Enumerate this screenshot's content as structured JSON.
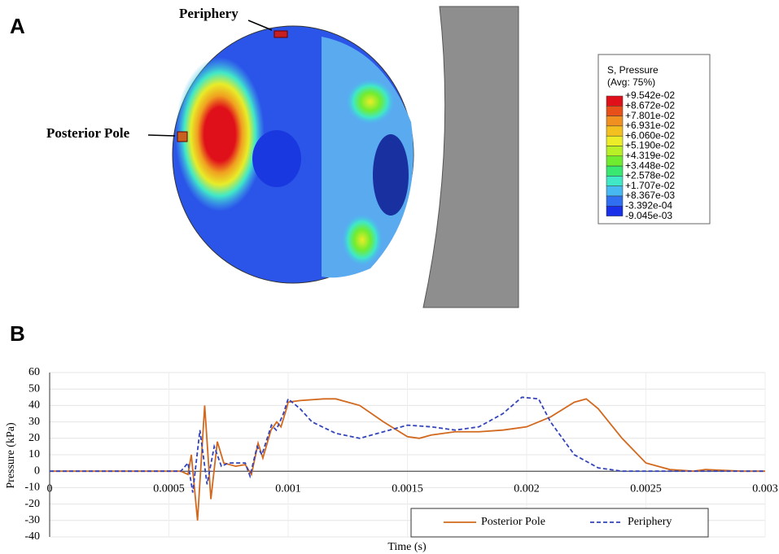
{
  "panel_a": {
    "label": "A",
    "annotations": [
      "Periphery",
      "Posterior Pole"
    ],
    "legend": {
      "title": "S, Pressure",
      "subtitle": "(Avg: 75%)",
      "labels": [
        "+9.542e-02",
        "+8.672e-02",
        "+7.801e-02",
        "+6.931e-02",
        "+6.060e-02",
        "+5.190e-02",
        "+4.319e-02",
        "+3.448e-02",
        "+2.578e-02",
        "+1.707e-02",
        "+8.367e-03",
        "-3.392e-04",
        "-9.045e-03"
      ],
      "colors": [
        "#e0101a",
        "#e8501a",
        "#f09020",
        "#f4c020",
        "#ecec28",
        "#b8f028",
        "#70ec30",
        "#38e870",
        "#40e8c8",
        "#48b8f0",
        "#3070f0",
        "#1830e8"
      ]
    }
  },
  "chart_data": {
    "type": "line",
    "panel_label": "B",
    "xlabel": "Time (s)",
    "ylabel": "Pressure (kPa)",
    "xlim": [
      0,
      0.003
    ],
    "xticks": [
      0,
      0.0005,
      0.001,
      0.0015,
      0.002,
      0.0025,
      0.003
    ],
    "ylim": [
      -40,
      60
    ],
    "yticks": [
      -40,
      -30,
      -20,
      -10,
      0,
      10,
      20,
      30,
      40,
      50,
      60
    ],
    "grid": true,
    "legend_position": "lower right",
    "series": [
      {
        "name": "Posterior Pole",
        "color": "#d2691e",
        "line_style": "solid",
        "x": [
          0,
          0.00055,
          0.00058,
          0.000594,
          0.00062,
          0.00065,
          0.000676,
          0.000703,
          0.00073,
          0.00078,
          0.00082,
          0.000846,
          0.000874,
          0.000894,
          0.000928,
          0.000952,
          0.00097,
          0.000993,
          0.001,
          0.00105,
          0.00115,
          0.0012,
          0.0013,
          0.0014,
          0.0015,
          0.00155,
          0.0016,
          0.0017,
          0.0018,
          0.0019,
          0.002,
          0.0021,
          0.0022,
          0.00225,
          0.0023,
          0.0024,
          0.0025,
          0.0026,
          0.0027,
          0.00275,
          0.0029,
          0.003
        ],
        "values": [
          0,
          0,
          -2,
          10,
          -30,
          40,
          -17,
          18,
          5,
          3,
          4,
          -2,
          17,
          8,
          25,
          30,
          27,
          38,
          42,
          43,
          44,
          44,
          40,
          30,
          21,
          20,
          22,
          24,
          24,
          25,
          27,
          33,
          42,
          44,
          38,
          20,
          5,
          1,
          0,
          1,
          0,
          0
        ]
      },
      {
        "name": "Periphery",
        "color": "#3344bb",
        "line_style": "dashed",
        "x": [
          0,
          0.00055,
          0.00058,
          0.0006,
          0.00063,
          0.00066,
          0.00069,
          0.00072,
          0.00075,
          0.00082,
          0.00084,
          0.00087,
          0.00089,
          0.00093,
          0.00095,
          0.00098,
          0.001,
          0.00105,
          0.0011,
          0.0012,
          0.0013,
          0.0014,
          0.0015,
          0.0016,
          0.0017,
          0.0018,
          0.0019,
          0.00198,
          0.00205,
          0.0021,
          0.0022,
          0.0023,
          0.0024,
          0.003
        ],
        "values": [
          0,
          0,
          5,
          -13,
          25,
          -8,
          15,
          3,
          5,
          5,
          -3,
          15,
          10,
          28,
          25,
          35,
          44,
          38,
          30,
          23,
          20,
          24,
          28,
          27,
          25,
          27,
          35,
          45,
          44,
          30,
          10,
          2,
          0,
          0
        ]
      }
    ]
  }
}
